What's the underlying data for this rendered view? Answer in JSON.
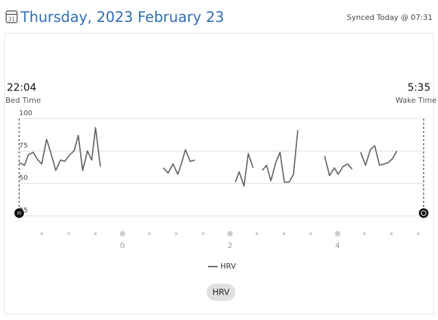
{
  "header": {
    "title": "Thursday, 2023 February 23",
    "sync": "Synced Today @ 07:31",
    "calendar_day": "31"
  },
  "sleep": {
    "bed_time": "22:04",
    "bed_label": "Bed Time",
    "wake_time": "5:35",
    "wake_label": "Wake Time"
  },
  "button": "HRV",
  "chart_data": {
    "type": "line",
    "x": [
      -1.92,
      -1.82,
      -1.75,
      -1.66,
      -1.57,
      -1.5,
      -1.41,
      -1.32,
      -1.24,
      -1.15,
      -1.07,
      -0.98,
      -0.9,
      -0.82,
      -0.74,
      -0.65,
      -0.57,
      -0.5,
      -0.41,
      0.2,
      0.76,
      0.85,
      0.94,
      1.03,
      1.11,
      1.17,
      1.26,
      1.35,
      1.7,
      2.1,
      2.17,
      2.26,
      2.34,
      2.43,
      2.5,
      2.6,
      2.68,
      2.76,
      2.85,
      2.93,
      3.01,
      3.1,
      3.18,
      3.26,
      3.5,
      3.76,
      3.85,
      3.94,
      4.01,
      4.1,
      4.19,
      4.27,
      4.35,
      4.43,
      4.52,
      4.61,
      4.69,
      4.78,
      4.87,
      4.94,
      5.02,
      5.1
    ],
    "series": [
      {
        "name": "HRV",
        "color": "#666666",
        "values": [
          66,
          64,
          72,
          74,
          68,
          65,
          84,
          72,
          60,
          68,
          67,
          72,
          75,
          87,
          60,
          75,
          68,
          93,
          63,
          null,
          62,
          58,
          65,
          57,
          67,
          76,
          67,
          68,
          null,
          51,
          59,
          48,
          73,
          62,
          null,
          60,
          64,
          52,
          66,
          74,
          51,
          51,
          57,
          91,
          null,
          71,
          56,
          62,
          57,
          63,
          65,
          61,
          null,
          74,
          64,
          76,
          79,
          64,
          65,
          66,
          69,
          75
        ]
      }
    ],
    "xlim": [
      -1.92,
      5.6
    ],
    "xticks": [
      0,
      2,
      4
    ],
    "xminor_ticks": [
      -1.5,
      -1,
      -0.5,
      0.5,
      1,
      1.5,
      2.5,
      3,
      3.5,
      4.5,
      5,
      5.5
    ],
    "ylim": [
      25,
      100
    ],
    "yticks": [
      25,
      50,
      75,
      100
    ],
    "grid": true
  }
}
